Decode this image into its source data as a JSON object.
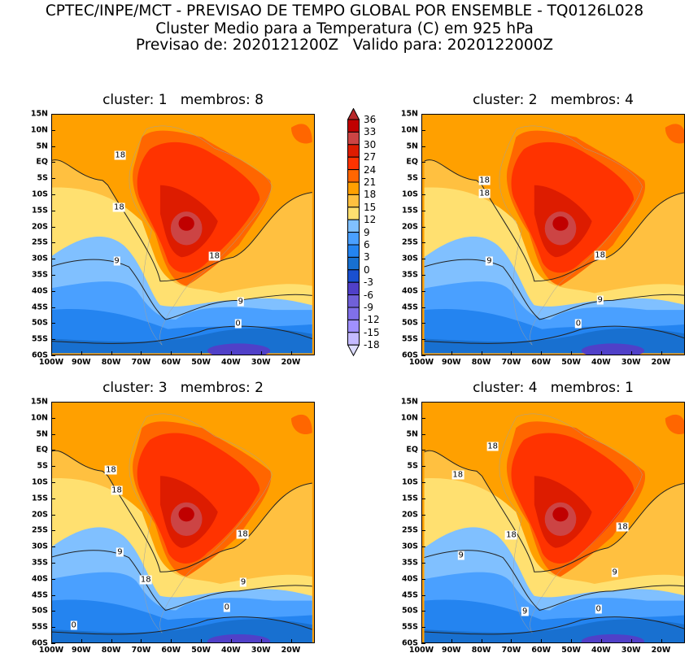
{
  "header": {
    "line1": "CPTEC/INPE/MCT - PREVISAO DE TEMPO GLOBAL POR ENSEMBLE - TQ0126L028",
    "line2": "Cluster Medio para a Temperatura (C) em 925 hPa",
    "line3": "Previsao de: 2020121200Z   Valido para: 2020122000Z"
  },
  "axes": {
    "lat_labels": [
      "15N",
      "10N",
      "5N",
      "EQ",
      "5S",
      "10S",
      "15S",
      "20S",
      "25S",
      "30S",
      "35S",
      "40S",
      "45S",
      "50S",
      "55S",
      "60S"
    ],
    "lon_labels": [
      "100W",
      "90W",
      "80W",
      "70W",
      "60W",
      "50W",
      "40W",
      "30W",
      "20W"
    ]
  },
  "panels": [
    {
      "title": "cluster: 1   membros: 8",
      "contour_labels": [
        "18",
        "18",
        "18",
        "9",
        "9",
        "0"
      ]
    },
    {
      "title": "cluster: 2   membros: 4",
      "contour_labels": [
        "18",
        "18",
        "18",
        "9",
        "9",
        "0"
      ]
    },
    {
      "title": "cluster: 3   membros: 2",
      "contour_labels": [
        "18",
        "18",
        "18",
        "9",
        "18",
        "9",
        "0",
        "0"
      ]
    },
    {
      "title": "cluster: 4   membros: 1",
      "contour_labels": [
        "18",
        "18",
        "18",
        "18",
        "9",
        "9",
        "9",
        "0"
      ]
    }
  ],
  "colorbar": {
    "labels": [
      "36",
      "33",
      "30",
      "27",
      "24",
      "21",
      "18",
      "15",
      "12",
      "9",
      "6",
      "3",
      "0",
      "-3",
      "-6",
      "-9",
      "-12",
      "-15",
      "-18"
    ],
    "colors": [
      "#b8282a",
      "#c00000",
      "#cc4444",
      "#dd1c00",
      "#ff3300",
      "#ff6600",
      "#ffa000",
      "#ffc040",
      "#ffe070",
      "#80c0ff",
      "#4aa0ff",
      "#2484f0",
      "#1870d0",
      "#1a50d0",
      "#5040c8",
      "#7060d8",
      "#8070e8",
      "#a090ff",
      "#c4baff",
      "#dcdcff"
    ]
  }
}
